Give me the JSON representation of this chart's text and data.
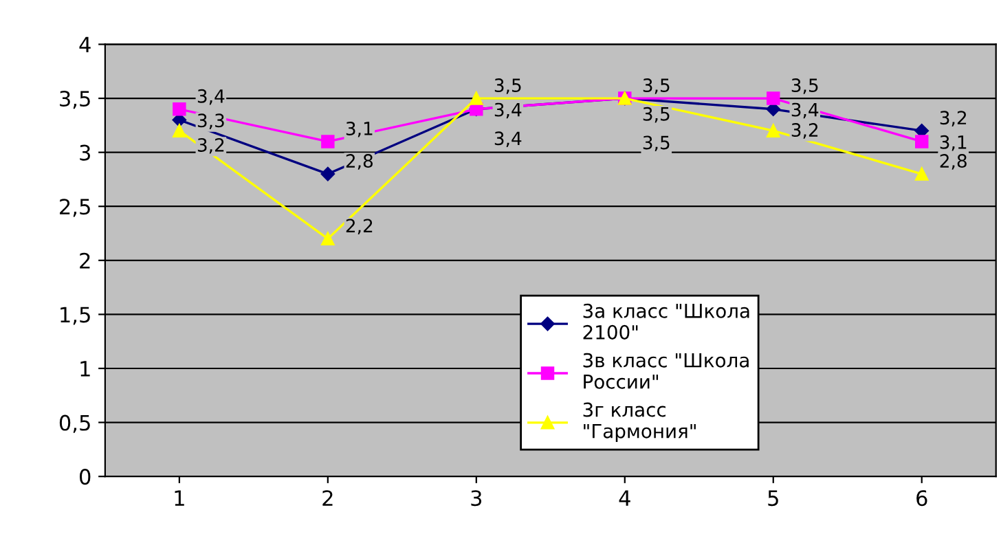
{
  "chart_data": {
    "type": "line",
    "categories": [
      "1",
      "2",
      "3",
      "4",
      "5",
      "6"
    ],
    "series": [
      {
        "name": "3а класс \"Школа\n2100\"",
        "color": "#000080",
        "marker": "diamond",
        "values": [
          3.3,
          2.8,
          3.4,
          3.5,
          3.4,
          3.2
        ],
        "value_labels": [
          "3,3",
          "2,8",
          "3,4",
          "3,5",
          "3,4",
          "3,2"
        ]
      },
      {
        "name": "3в класс \"Школа\nРоссии\"",
        "color": "#ff00ff",
        "marker": "square",
        "values": [
          3.4,
          3.1,
          3.4,
          3.5,
          3.5,
          3.1
        ],
        "value_labels": [
          "3,4",
          "3,1",
          "3,4",
          "3,5",
          "3,5",
          "3,1"
        ]
      },
      {
        "name": "3г класс\n\"Гармония\"",
        "color": "#ffff00",
        "marker": "triangle",
        "values": [
          3.2,
          2.2,
          3.5,
          3.5,
          3.2,
          2.8
        ],
        "value_labels": [
          "3,2",
          "2,2",
          "3,5",
          "3,5",
          "3,2",
          "2,8"
        ]
      }
    ],
    "ylim": [
      0,
      4
    ],
    "yticks": [
      0,
      {
        "value": 0.5,
        "label": "0,5"
      },
      1,
      {
        "value": 1.5,
        "label": "1,5"
      },
      2,
      {
        "value": 2.5,
        "label": "2,5"
      },
      3,
      {
        "value": 3.5,
        "label": "3,5"
      },
      4
    ],
    "grid": "y",
    "legend": "bottom",
    "line_style": "solid"
  }
}
